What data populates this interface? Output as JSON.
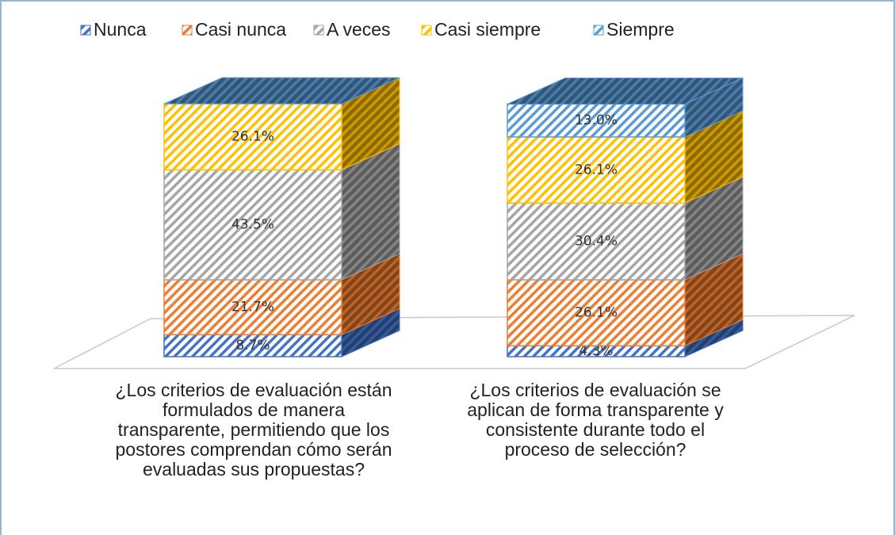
{
  "chart_data": {
    "type": "bar3d_stacked",
    "categories": [
      "¿Los criterios de evaluación están formulados de manera transparente, permitiendo que los postores comprendan cómo serán evaluadas sus propuestas?",
      "¿Los criterios de evaluación se aplican de forma transparente y consistente durante todo el proceso de selección?"
    ],
    "series": [
      {
        "name": "Nunca",
        "color": "#4472c4",
        "values": [
          8.7,
          4.3
        ],
        "value_labels": [
          "8.7%",
          "4.3%"
        ]
      },
      {
        "name": "Casi nunca",
        "color": "#ed7d31",
        "values": [
          21.7,
          26.1
        ],
        "value_labels": [
          "21.7%",
          "26.1%"
        ]
      },
      {
        "name": "A veces",
        "color": "#a5a5a5",
        "values": [
          43.5,
          30.4
        ],
        "value_labels": [
          "43.5%",
          "30.4%"
        ]
      },
      {
        "name": "Casi siempre",
        "color": "#ffc000",
        "values": [
          26.1,
          26.1
        ],
        "value_labels": [
          "26.1%",
          "26.1%"
        ]
      },
      {
        "name": "Siempre",
        "color": "#5b9bd5",
        "values": [
          0,
          13.0
        ],
        "value_labels": [
          null,
          "13.0%"
        ]
      }
    ],
    "legend": "top"
  }
}
